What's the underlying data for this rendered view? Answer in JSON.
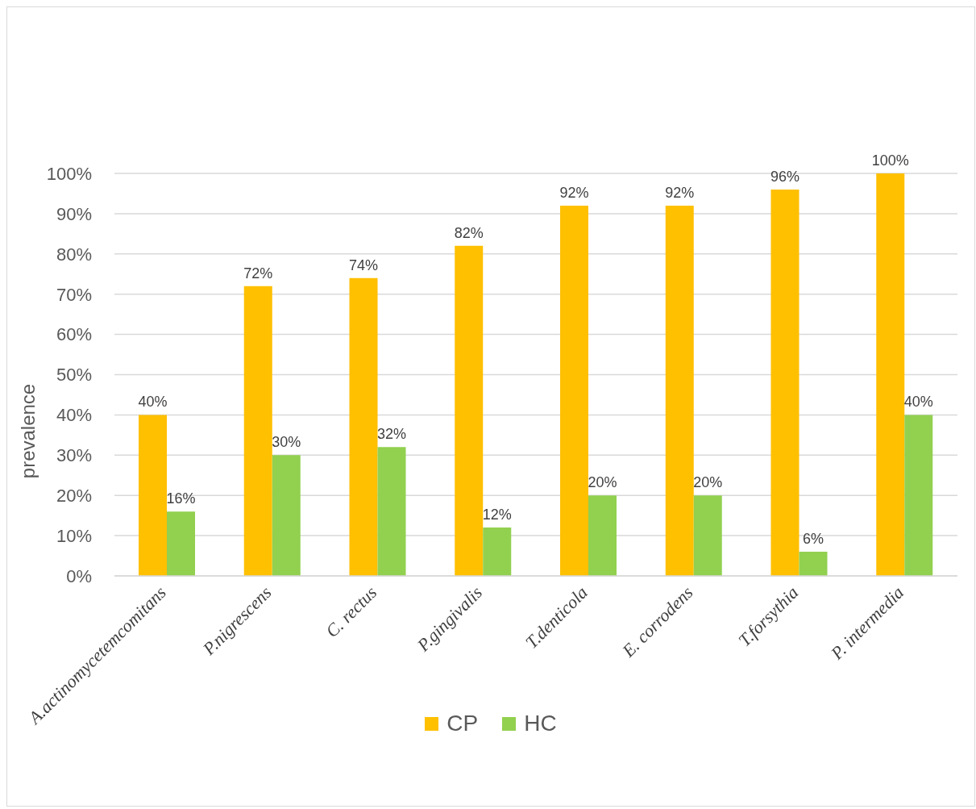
{
  "chart_data": {
    "type": "bar",
    "ylabel": "prevalence",
    "categories": [
      "A.actinomycetemcomitans",
      "P.nigrescens",
      "C. rectus",
      "P.gingivalis",
      "T.denticola",
      "E. corrodens",
      "T.forsythia",
      "P. intermedia"
    ],
    "series": [
      {
        "name": "CP",
        "color": "#ffc000",
        "values": [
          40,
          72,
          74,
          82,
          92,
          92,
          96,
          100
        ],
        "value_labels": [
          "40%",
          "72%",
          "74%",
          "82%",
          "92%",
          "92%",
          "96%",
          "100%"
        ]
      },
      {
        "name": "HC",
        "color": "#92d050",
        "values": [
          16,
          30,
          32,
          12,
          20,
          20,
          6,
          40
        ],
        "value_labels": [
          "16%",
          "30%",
          "32%",
          "12%",
          "20%",
          "20%",
          "6%",
          "40%"
        ]
      }
    ],
    "ylim": [
      0,
      100
    ],
    "yticks": [
      {
        "value": 0,
        "label": "0%"
      },
      {
        "value": 10,
        "label": "10%"
      },
      {
        "value": 20,
        "label": "20%"
      },
      {
        "value": 30,
        "label": "30%"
      },
      {
        "value": 40,
        "label": "40%"
      },
      {
        "value": 50,
        "label": "50%"
      },
      {
        "value": 60,
        "label": "60%"
      },
      {
        "value": 70,
        "label": "70%"
      },
      {
        "value": 80,
        "label": "80%"
      },
      {
        "value": 90,
        "label": "90%"
      },
      {
        "value": 100,
        "label": "100%"
      }
    ],
    "grid": "y",
    "legend": "bottom"
  }
}
